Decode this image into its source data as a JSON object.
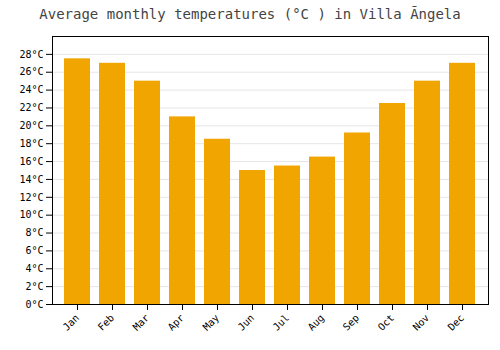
{
  "chart_data": {
    "type": "bar",
    "title": "Average monthly temperatures (°C ) in Villa Ãngela",
    "categories": [
      "Jan",
      "Feb",
      "Mar",
      "Apr",
      "May",
      "Jun",
      "Jul",
      "Aug",
      "Sep",
      "Oct",
      "Nov",
      "Dec"
    ],
    "values": [
      27.5,
      27.0,
      25.0,
      21.0,
      18.5,
      15.0,
      15.5,
      16.5,
      19.2,
      22.5,
      25.0,
      27.0
    ],
    "color": "#F0A500",
    "ylim": [
      0,
      30
    ],
    "yticks": [
      {
        "value": 0,
        "label": "0°C"
      },
      {
        "value": 2,
        "label": "2°C"
      },
      {
        "value": 4,
        "label": "4°C"
      },
      {
        "value": 6,
        "label": "6°C"
      },
      {
        "value": 8,
        "label": "8°C"
      },
      {
        "value": 10,
        "label": "10°C"
      },
      {
        "value": 12,
        "label": "12°C"
      },
      {
        "value": 14,
        "label": "14°C"
      },
      {
        "value": 16,
        "label": "16°C"
      },
      {
        "value": 18,
        "label": "18°C"
      },
      {
        "value": 20,
        "label": "20°C"
      },
      {
        "value": 22,
        "label": "22°C"
      },
      {
        "value": 24,
        "label": "24°C"
      },
      {
        "value": 26,
        "label": "26°C"
      },
      {
        "value": 28,
        "label": "28°C"
      }
    ],
    "grid": true
  }
}
